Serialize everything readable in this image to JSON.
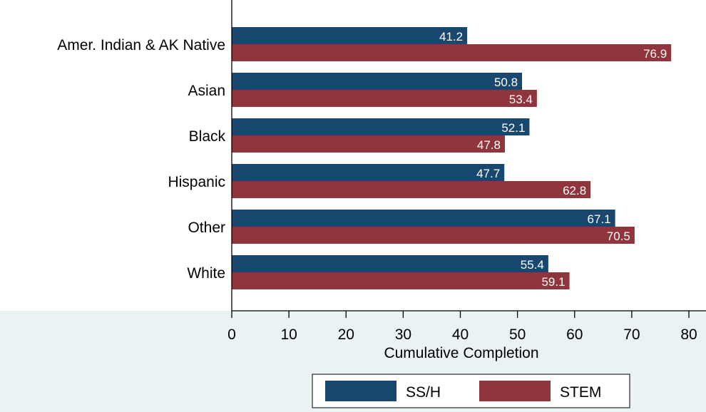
{
  "chart_data": {
    "type": "bar",
    "orientation": "horizontal",
    "categories": [
      "Amer. Indian & AK Native",
      "Asian",
      "Black",
      "Hispanic",
      "Other",
      "White"
    ],
    "series": [
      {
        "name": "SS/H",
        "values": [
          41.2,
          50.8,
          52.1,
          47.7,
          67.1,
          55.4
        ],
        "color": "#1a476f"
      },
      {
        "name": "STEM",
        "values": [
          76.9,
          53.4,
          47.8,
          62.8,
          70.5,
          59.1
        ],
        "color": "#90353b"
      }
    ],
    "xlabel": "Cumulative Completion",
    "xlim": [
      0,
      80
    ],
    "xticks": [
      0,
      10,
      20,
      30,
      40,
      50,
      60,
      70,
      80
    ],
    "legend_position": "bottom-center",
    "grid": false,
    "background_color": "#eaf2f3",
    "plot_background_color": "#ffffff",
    "label_color": "#ffffff",
    "text_color": "#000000"
  }
}
